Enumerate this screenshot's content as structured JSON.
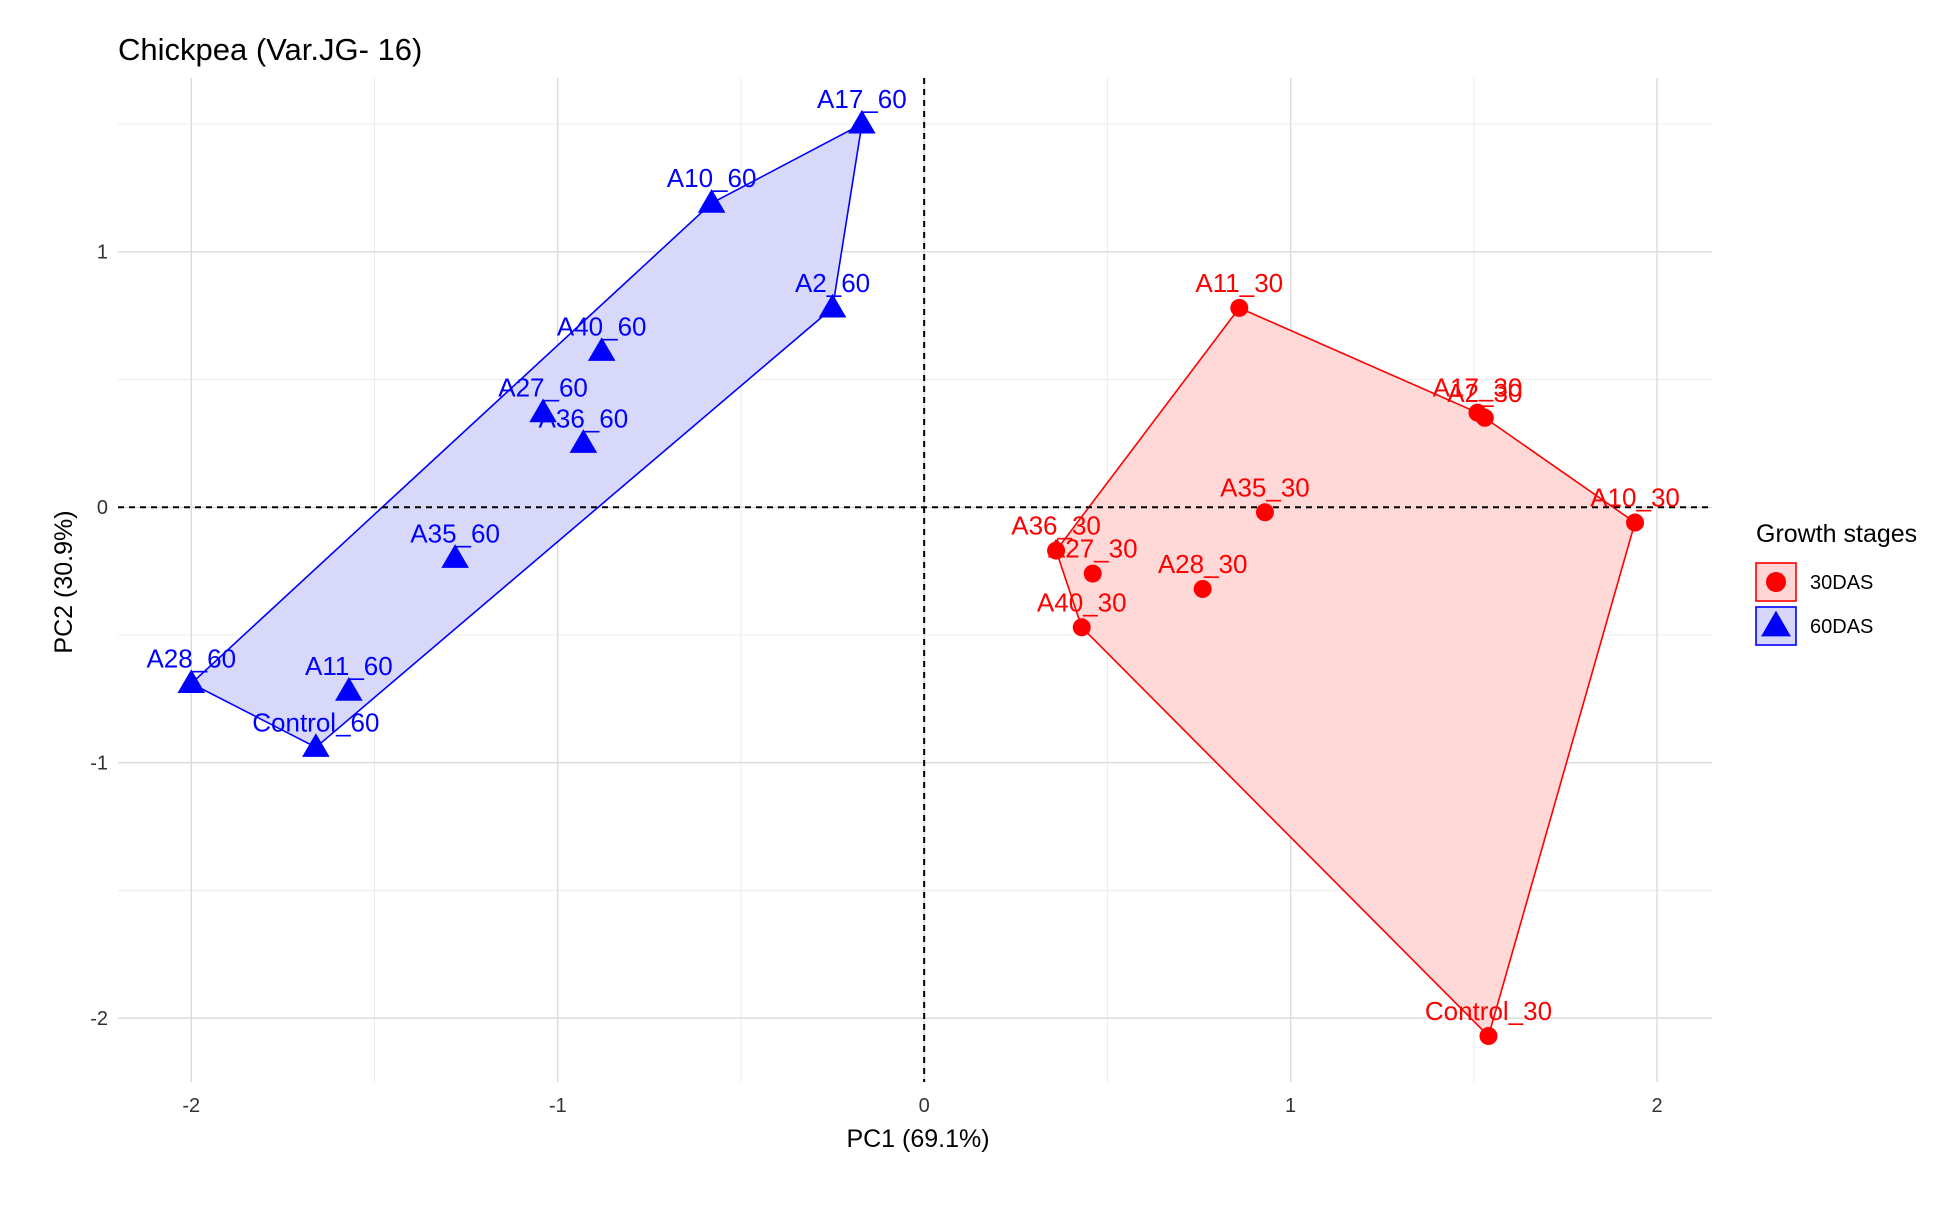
{
  "chart_data": {
    "type": "scatter",
    "title": "Chickpea (Var.JG- 16)",
    "xlabel": "PC1 (69.1%)",
    "ylabel": "PC2 (30.9%)",
    "xlim": [
      -2.2,
      2.15
    ],
    "ylim": [
      -2.25,
      1.68
    ],
    "x_ticks": [
      -2,
      -1,
      0,
      1,
      2
    ],
    "y_ticks": [
      -2,
      -1,
      0,
      1
    ],
    "grid": true,
    "reference_lines": {
      "x": 0,
      "y": 0,
      "style": "dashed"
    },
    "legend": {
      "title": "Growth stages",
      "position": "right"
    },
    "series": [
      {
        "name": "30DAS",
        "color": "#ff0000",
        "fill": "#ffd6d6",
        "marker": "circle",
        "points": [
          {
            "label": "A11_30",
            "x": 0.86,
            "y": 0.78
          },
          {
            "label": "A17_30",
            "x": 1.51,
            "y": 0.37
          },
          {
            "label": "A2_30",
            "x": 1.53,
            "y": 0.35
          },
          {
            "label": "A35_30",
            "x": 0.93,
            "y": -0.02
          },
          {
            "label": "A10_30",
            "x": 1.94,
            "y": -0.06
          },
          {
            "label": "A36_30",
            "x": 0.36,
            "y": -0.17
          },
          {
            "label": "A27_30",
            "x": 0.46,
            "y": -0.26
          },
          {
            "label": "A28_30",
            "x": 0.76,
            "y": -0.32
          },
          {
            "label": "A40_30",
            "x": 0.43,
            "y": -0.47
          },
          {
            "label": "Control_30",
            "x": 1.54,
            "y": -2.07
          }
        ]
      },
      {
        "name": "60DAS",
        "color": "#0000ff",
        "fill": "#d6d6fa",
        "marker": "triangle",
        "points": [
          {
            "label": "A17_60",
            "x": -0.17,
            "y": 1.5
          },
          {
            "label": "A10_60",
            "x": -0.58,
            "y": 1.19
          },
          {
            "label": "A2_60",
            "x": -0.25,
            "y": 0.78
          },
          {
            "label": "A40_60",
            "x": -0.88,
            "y": 0.61
          },
          {
            "label": "A27_60",
            "x": -1.04,
            "y": 0.37
          },
          {
            "label": "A36_60",
            "x": -0.93,
            "y": 0.25
          },
          {
            "label": "A35_60",
            "x": -1.28,
            "y": -0.2
          },
          {
            "label": "A28_60",
            "x": -2.0,
            "y": -0.69
          },
          {
            "label": "A11_60",
            "x": -1.57,
            "y": -0.72
          },
          {
            "label": "Control_60",
            "x": -1.66,
            "y": -0.94
          }
        ]
      }
    ]
  }
}
